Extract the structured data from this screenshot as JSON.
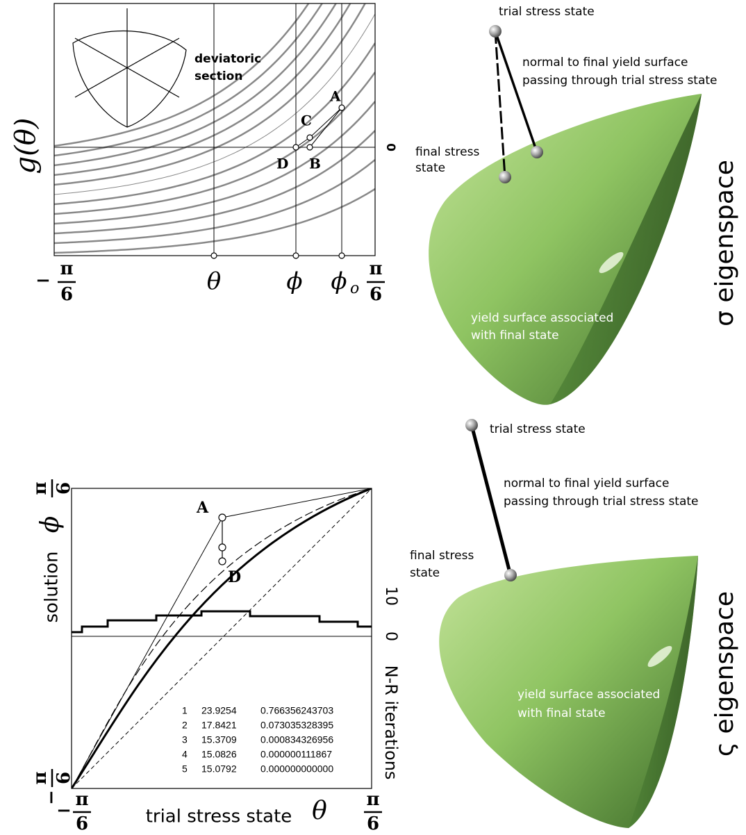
{
  "top_plot": {
    "y_label": "g(θ)",
    "inset_label": [
      "deviatoric",
      "section"
    ],
    "zero_label": "0",
    "x_left": {
      "sign": "−",
      "num": "π",
      "den": "6"
    },
    "x_theta": "θ",
    "x_phi": "ϕ",
    "x_phi_o": "ϕ",
    "x_phi_o_sub": "o",
    "x_right": {
      "num": "π",
      "den": "6"
    },
    "points": {
      "A": "A",
      "B": "B",
      "C": "C",
      "D": "D"
    }
  },
  "top_surface": {
    "trial": "trial stress state",
    "normal": [
      "normal to final yield surface",
      "passing through trial stress state"
    ],
    "final": [
      "final stress",
      "state"
    ],
    "surface": [
      "yield surface associated",
      "with final state"
    ],
    "space": "σ eigenspace"
  },
  "bottom_plot": {
    "y_label": "solution",
    "y_symbol": "ϕ",
    "y_top": {
      "num": "π",
      "den": "6"
    },
    "y_bottom": {
      "sign": "−",
      "num": "π",
      "den": "6"
    },
    "right_label": "N-R iterations",
    "right_ticks": [
      "0",
      "10"
    ],
    "x_label": "trial stress state",
    "x_symbol": "θ",
    "x_left": {
      "sign": "−",
      "num": "π",
      "den": "6"
    },
    "x_right": {
      "num": "π",
      "den": "6"
    },
    "points": {
      "A": "A",
      "D": "D"
    },
    "table": [
      [
        "1",
        "23.9254",
        "0.766356243703"
      ],
      [
        "2",
        "17.8421",
        "0.073035328395"
      ],
      [
        "3",
        "15.3709",
        "0.000834326956"
      ],
      [
        "4",
        "15.0826",
        "0.000000111867"
      ],
      [
        "5",
        "15.0792",
        "0.000000000000"
      ]
    ]
  },
  "bottom_surface": {
    "trial": "trial stress state",
    "normal": [
      "normal to final yield surface",
      "passing through trial stress state"
    ],
    "final": [
      "final stress",
      "state"
    ],
    "surface": [
      "yield surface associated",
      "with final state"
    ],
    "space": "ς eigenspace"
  }
}
